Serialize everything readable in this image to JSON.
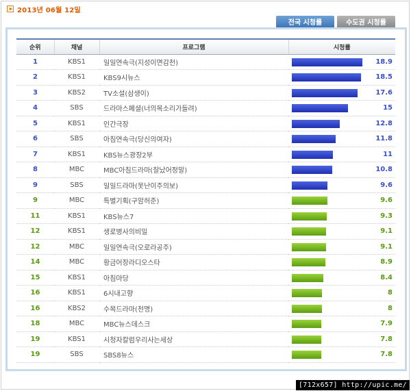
{
  "header": {
    "date": "2013년 06월 12일",
    "tabs": [
      {
        "label": "전국 시청률",
        "active": true
      },
      {
        "label": "수도권 시청률",
        "active": false
      }
    ]
  },
  "table": {
    "columns": [
      "순위",
      "채널",
      "프로그램",
      "시청률"
    ],
    "rating_max": 18.9,
    "rows": [
      {
        "rank": "1",
        "channel": "KBS1",
        "program": "일일연속극(지성이면감천)",
        "rating": "18.9",
        "color": "blue"
      },
      {
        "rank": "2",
        "channel": "KBS1",
        "program": "KBS9시뉴스",
        "rating": "18.5",
        "color": "blue"
      },
      {
        "rank": "3",
        "channel": "KBS2",
        "program": "TV소설(삼생이)",
        "rating": "17.6",
        "color": "blue"
      },
      {
        "rank": "4",
        "channel": "SBS",
        "program": "드라마스페셜(너의목소리가들려)",
        "rating": "15",
        "color": "blue"
      },
      {
        "rank": "5",
        "channel": "KBS1",
        "program": "인간극장",
        "rating": "12.8",
        "color": "blue"
      },
      {
        "rank": "6",
        "channel": "SBS",
        "program": "아침연속극(당신의여자)",
        "rating": "11.8",
        "color": "blue"
      },
      {
        "rank": "7",
        "channel": "KBS1",
        "program": "KBS뉴스광장2부",
        "rating": "11",
        "color": "blue"
      },
      {
        "rank": "8",
        "channel": "MBC",
        "program": "MBC아침드라마(잘났어정말)",
        "rating": "10.8",
        "color": "blue"
      },
      {
        "rank": "9",
        "channel": "SBS",
        "program": "일일드라마(못난이주의보)",
        "rating": "9.6",
        "color": "blue"
      },
      {
        "rank": "9",
        "channel": "MBC",
        "program": "특별기획(구암허준)",
        "rating": "9.6",
        "color": "green"
      },
      {
        "rank": "11",
        "channel": "KBS1",
        "program": "KBS뉴스7",
        "rating": "9.3",
        "color": "green"
      },
      {
        "rank": "12",
        "channel": "KBS1",
        "program": "생로병사의비밀",
        "rating": "9.1",
        "color": "green"
      },
      {
        "rank": "12",
        "channel": "MBC",
        "program": "일일연속극(오로라공주)",
        "rating": "9.1",
        "color": "green"
      },
      {
        "rank": "14",
        "channel": "MBC",
        "program": "황금어장라디오스타",
        "rating": "8.9",
        "color": "green"
      },
      {
        "rank": "15",
        "channel": "KBS1",
        "program": "아침마당",
        "rating": "8.4",
        "color": "green"
      },
      {
        "rank": "16",
        "channel": "KBS1",
        "program": "6시내고향",
        "rating": "8",
        "color": "green"
      },
      {
        "rank": "16",
        "channel": "KBS2",
        "program": "수목드라마(천명)",
        "rating": "8",
        "color": "green"
      },
      {
        "rank": "18",
        "channel": "MBC",
        "program": "MBC뉴스데스크",
        "rating": "7.9",
        "color": "green"
      },
      {
        "rank": "19",
        "channel": "KBS1",
        "program": "시청자칼럼우리사는세상",
        "rating": "7.8",
        "color": "green"
      },
      {
        "rank": "19",
        "channel": "SBS",
        "program": "SBS8뉴스",
        "rating": "7.8",
        "color": "green"
      }
    ]
  },
  "colors": {
    "rank_blue": "#3a4fc8",
    "rank_green": "#5a9a10",
    "date": "#e05a00"
  },
  "watermark": "[712x657] http://upic.me/"
}
